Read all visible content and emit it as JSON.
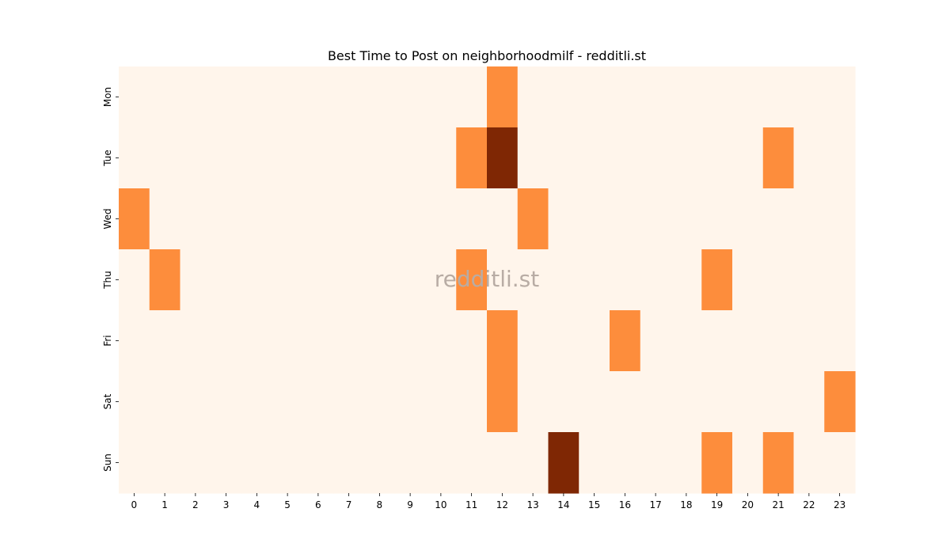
{
  "chart_data": {
    "type": "heatmap",
    "title": "Best Time to Post on neighborhoodmilf - redditli.st",
    "watermark": "redditli.st",
    "xlabel": "",
    "ylabel": "",
    "x": [
      "0",
      "1",
      "2",
      "3",
      "4",
      "5",
      "6",
      "7",
      "8",
      "9",
      "10",
      "11",
      "12",
      "13",
      "14",
      "15",
      "16",
      "17",
      "18",
      "19",
      "20",
      "21",
      "22",
      "23"
    ],
    "y": [
      "Mon",
      "Tue",
      "Wed",
      "Thu",
      "Fri",
      "Sat",
      "Sun"
    ],
    "values": [
      [
        0,
        0,
        0,
        0,
        0,
        0,
        0,
        0,
        0,
        0,
        0,
        0,
        1,
        0,
        0,
        0,
        0,
        0,
        0,
        0,
        0,
        0,
        0,
        0
      ],
      [
        0,
        0,
        0,
        0,
        0,
        0,
        0,
        0,
        0,
        0,
        0,
        1,
        2,
        0,
        0,
        0,
        0,
        0,
        0,
        0,
        0,
        1,
        0,
        0
      ],
      [
        1,
        0,
        0,
        0,
        0,
        0,
        0,
        0,
        0,
        0,
        0,
        0,
        0,
        1,
        0,
        0,
        0,
        0,
        0,
        0,
        0,
        0,
        0,
        0
      ],
      [
        0,
        1,
        0,
        0,
        0,
        0,
        0,
        0,
        0,
        0,
        0,
        1,
        0,
        0,
        0,
        0,
        0,
        0,
        0,
        1,
        0,
        0,
        0,
        0
      ],
      [
        0,
        0,
        0,
        0,
        0,
        0,
        0,
        0,
        0,
        0,
        0,
        0,
        1,
        0,
        0,
        0,
        1,
        0,
        0,
        0,
        0,
        0,
        0,
        0
      ],
      [
        0,
        0,
        0,
        0,
        0,
        0,
        0,
        0,
        0,
        0,
        0,
        0,
        1,
        0,
        0,
        0,
        0,
        0,
        0,
        0,
        0,
        0,
        0,
        1
      ],
      [
        0,
        0,
        0,
        0,
        0,
        0,
        0,
        0,
        0,
        0,
        0,
        0,
        0,
        0,
        2,
        0,
        0,
        0,
        0,
        1,
        0,
        1,
        0,
        0
      ]
    ],
    "colors": {
      "0": "#fff5eb",
      "1": "#fd8d3c",
      "2": "#7f2704"
    },
    "grid": false,
    "legend": "none"
  }
}
